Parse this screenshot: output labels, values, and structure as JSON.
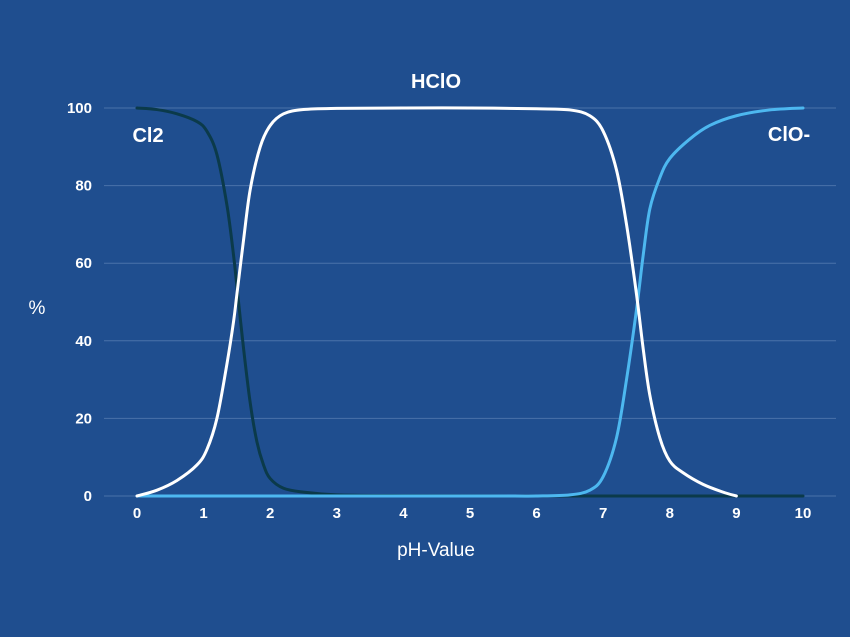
{
  "chart_data": {
    "type": "line",
    "title": "",
    "xlabel": "pH-Value",
    "ylabel": "%",
    "xlim": [
      0,
      10
    ],
    "ylim": [
      0,
      100
    ],
    "x_ticks": [
      0,
      1,
      2,
      3,
      4,
      5,
      6,
      7,
      8,
      9,
      10
    ],
    "y_ticks": [
      0,
      20,
      40,
      60,
      80,
      100
    ],
    "grid": "horizontal",
    "legend": "none",
    "colors": {
      "background": "#1f4e8f",
      "grid": "#4a72aa",
      "text": "#ffffff"
    },
    "series": [
      {
        "name": "Cl2",
        "color": "#0b3a4a",
        "points": [
          [
            0,
            100
          ],
          [
            0.3,
            99.6
          ],
          [
            0.6,
            98.5
          ],
          [
            0.9,
            96.5
          ],
          [
            1.05,
            94
          ],
          [
            1.2,
            88
          ],
          [
            1.35,
            75
          ],
          [
            1.45,
            62
          ],
          [
            1.5,
            54
          ],
          [
            1.6,
            38
          ],
          [
            1.7,
            24
          ],
          [
            1.8,
            14
          ],
          [
            1.9,
            8
          ],
          [
            2.0,
            4.5
          ],
          [
            2.2,
            2
          ],
          [
            2.5,
            1
          ],
          [
            3,
            0.3
          ],
          [
            4,
            0.1
          ],
          [
            6,
            0
          ],
          [
            8,
            0
          ],
          [
            10,
            0
          ]
        ]
      },
      {
        "name": "HClO",
        "color": "#ffffff",
        "points": [
          [
            0,
            0
          ],
          [
            0.3,
            1.5
          ],
          [
            0.6,
            4
          ],
          [
            0.9,
            8
          ],
          [
            1.05,
            12
          ],
          [
            1.2,
            20
          ],
          [
            1.35,
            34
          ],
          [
            1.45,
            45
          ],
          [
            1.5,
            52
          ],
          [
            1.6,
            66
          ],
          [
            1.7,
            79
          ],
          [
            1.85,
            90
          ],
          [
            2.0,
            95.5
          ],
          [
            2.2,
            98.5
          ],
          [
            2.5,
            99.6
          ],
          [
            3,
            99.9
          ],
          [
            4,
            100
          ],
          [
            5,
            100
          ],
          [
            6,
            99.8
          ],
          [
            6.5,
            99.5
          ],
          [
            6.8,
            98
          ],
          [
            7.0,
            94
          ],
          [
            7.2,
            84
          ],
          [
            7.35,
            70
          ],
          [
            7.5,
            52
          ],
          [
            7.6,
            38
          ],
          [
            7.7,
            26
          ],
          [
            7.85,
            15
          ],
          [
            8.0,
            9
          ],
          [
            8.2,
            6
          ],
          [
            8.5,
            3
          ],
          [
            8.8,
            1
          ],
          [
            9.0,
            0
          ]
        ]
      },
      {
        "name": "ClO-",
        "color": "#4db8f0",
        "points": [
          [
            0,
            0
          ],
          [
            4,
            0
          ],
          [
            5,
            0
          ],
          [
            5.5,
            0
          ],
          [
            6,
            0
          ],
          [
            6.5,
            0.3
          ],
          [
            6.8,
            1.5
          ],
          [
            7.0,
            5
          ],
          [
            7.2,
            15
          ],
          [
            7.35,
            30
          ],
          [
            7.5,
            48
          ],
          [
            7.6,
            62
          ],
          [
            7.7,
            74
          ],
          [
            7.85,
            82
          ],
          [
            8.0,
            87
          ],
          [
            8.3,
            92
          ],
          [
            8.6,
            95.5
          ],
          [
            9.0,
            98
          ],
          [
            9.5,
            99.5
          ],
          [
            10,
            100
          ]
        ]
      }
    ],
    "annotations": [
      {
        "text": "Cl2",
        "series": "Cl2",
        "x": 0,
        "y": 100,
        "anchor": "below-left"
      },
      {
        "text": "HClO",
        "series": "HClO",
        "x": 4.5,
        "y": 100,
        "anchor": "above"
      },
      {
        "text": "ClO-",
        "series": "ClO-",
        "x": 10,
        "y": 100,
        "anchor": "below-right"
      }
    ]
  }
}
